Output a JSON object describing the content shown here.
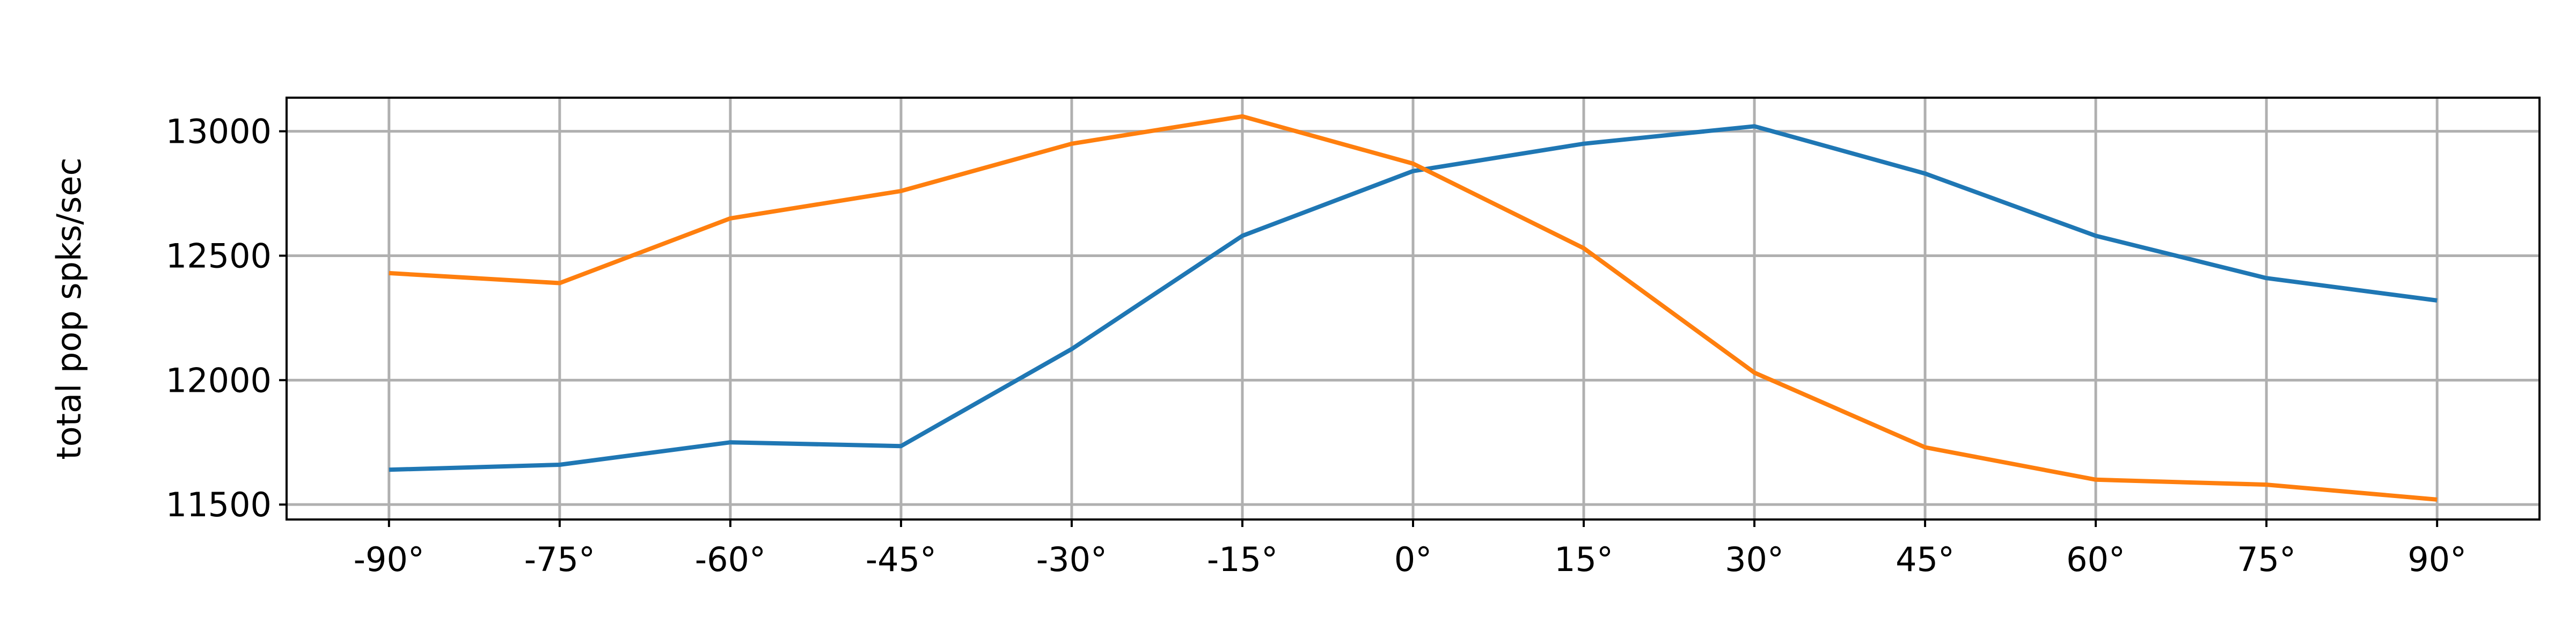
{
  "chart_data": {
    "type": "line",
    "title": "",
    "xlabel": "",
    "ylabel": "total pop spks/sec",
    "x": [
      -90,
      -75,
      -60,
      -45,
      -30,
      -15,
      0,
      15,
      30,
      45,
      60,
      75,
      90
    ],
    "xtick_labels": [
      "-90°",
      "-75°",
      "-60°",
      "-45°",
      "-30°",
      "-15°",
      "0°",
      "15°",
      "30°",
      "45°",
      "60°",
      "75°",
      "90°"
    ],
    "yticks": [
      11500,
      12000,
      12500,
      13000
    ],
    "ytick_labels": [
      "11500",
      "12000",
      "12500",
      "13000"
    ],
    "ylim": [
      11440,
      13135
    ],
    "xlim": [
      -99,
      99
    ],
    "grid": true,
    "legend": "none",
    "series": [
      {
        "color": "#1f77b4",
        "values": [
          11640,
          11660,
          11750,
          11735,
          12125,
          12580,
          12840,
          12950,
          13020,
          12830,
          12580,
          12410,
          12320
        ]
      },
      {
        "color": "#ff7f0e",
        "values": [
          12430,
          12390,
          12650,
          12760,
          12950,
          13060,
          12870,
          12530,
          12030,
          11730,
          11600,
          11580,
          11520
        ]
      }
    ]
  }
}
